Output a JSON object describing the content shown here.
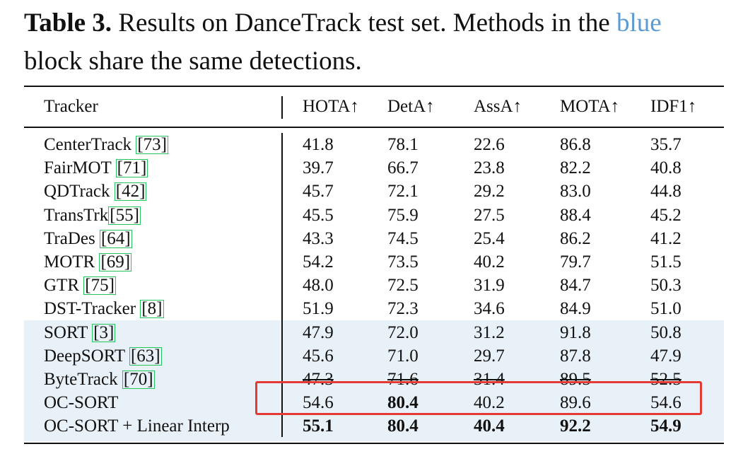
{
  "caption": {
    "label": "Table 3.",
    "text_before_blue": "Results on DanceTrack test set. Methods in the",
    "blue_word": "blue",
    "text_after_blue": "block share the same detections."
  },
  "table": {
    "headers": [
      "Tracker",
      "HOTA↑",
      "DetA↑",
      "AssA↑",
      "MOTA↑",
      "IDF1↑"
    ],
    "rows": [
      {
        "name": "CenterTrack ",
        "ref": "73",
        "vals": [
          "41.8",
          "78.1",
          "22.6",
          "86.8",
          "35.7"
        ]
      },
      {
        "name": "FairMOT ",
        "ref": "71",
        "vals": [
          "39.7",
          "66.7",
          "23.8",
          "82.2",
          "40.8"
        ]
      },
      {
        "name": "QDTrack ",
        "ref": "42",
        "vals": [
          "45.7",
          "72.1",
          "29.2",
          "83.0",
          "44.8"
        ]
      },
      {
        "name": "TransTrk",
        "ref": "55",
        "vals": [
          "45.5",
          "75.9",
          "27.5",
          "88.4",
          "45.2"
        ]
      },
      {
        "name": "TraDes ",
        "ref": "64",
        "vals": [
          "43.3",
          "74.5",
          "25.4",
          "86.2",
          "41.2"
        ]
      },
      {
        "name": "MOTR ",
        "ref": "69",
        "vals": [
          "54.2",
          "73.5",
          "40.2",
          "79.7",
          "51.5"
        ]
      },
      {
        "name": "GTR ",
        "ref": "75",
        "vals": [
          "48.0",
          "72.5",
          "31.9",
          "84.7",
          "50.3"
        ]
      },
      {
        "name": "DST-Tracker ",
        "ref": "8",
        "vals": [
          "51.9",
          "72.3",
          "34.6",
          "84.9",
          "51.0"
        ]
      },
      {
        "name": "SORT ",
        "ref": "3",
        "vals": [
          "47.9",
          "72.0",
          "31.2",
          "91.8",
          "50.8"
        ]
      },
      {
        "name": "DeepSORT ",
        "ref": "63",
        "vals": [
          "45.6",
          "71.0",
          "29.7",
          "87.8",
          "47.9"
        ]
      },
      {
        "name": "ByteTrack ",
        "ref": "70",
        "vals": [
          "47.3",
          "71.6",
          "31.4",
          "89.5",
          "52.5"
        ]
      },
      {
        "name": "OC-SORT",
        "ref": "",
        "vals": [
          "54.6",
          "80.4",
          "40.2",
          "89.6",
          "54.6"
        ]
      },
      {
        "name": "OC-SORT + Linear Interp",
        "ref": "",
        "vals": [
          "55.1",
          "80.4",
          "40.4",
          "92.2",
          "54.9"
        ]
      }
    ]
  },
  "colors": {
    "blue_block": "#e8f0f8",
    "highlight_box": "#e53935",
    "ref_box": "#22c55e",
    "caption_blue": "#5b9bd5"
  }
}
